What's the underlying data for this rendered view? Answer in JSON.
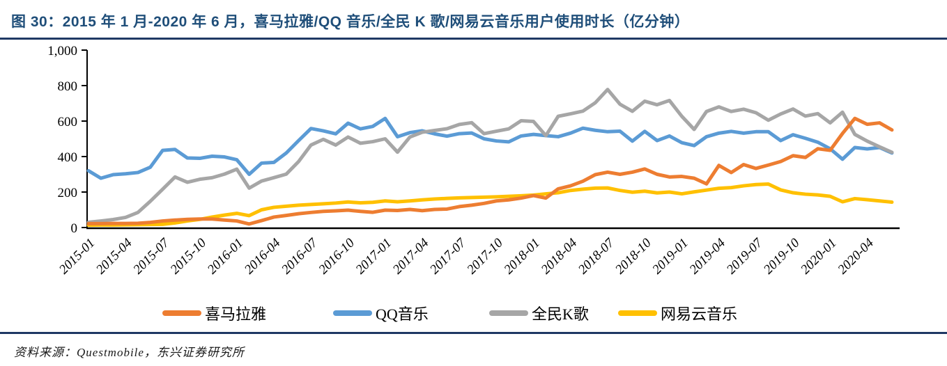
{
  "figure": {
    "title": "图 30：2015 年 1 月-2020 年 6 月，喜马拉雅/QQ 音乐/全民 K 歌/网易云音乐用户使用时长（亿分钟）",
    "source": "资料来源：Questmobile，东兴证券研究所",
    "accent_color": "#1F4E79",
    "rule_color": "#1F3864"
  },
  "chart_data": {
    "type": "line",
    "title": "2015年1月-2020年6月，喜马拉雅/QQ音乐/全民K歌/网易云音乐用户使用时长（亿分钟）",
    "xlabel": "",
    "ylabel": "",
    "ylim": [
      0,
      1000
    ],
    "grid": false,
    "legend_position": "bottom",
    "y_ticks": [
      "0",
      "200",
      "400",
      "600",
      "800",
      "1,000"
    ],
    "x": [
      "2015-01",
      "2015-02",
      "2015-03",
      "2015-04",
      "2015-05",
      "2015-06",
      "2015-07",
      "2015-08",
      "2015-09",
      "2015-10",
      "2015-11",
      "2015-12",
      "2016-01",
      "2016-02",
      "2016-03",
      "2016-04",
      "2016-05",
      "2016-06",
      "2016-07",
      "2016-08",
      "2016-09",
      "2016-10",
      "2016-11",
      "2016-12",
      "2017-01",
      "2017-02",
      "2017-03",
      "2017-04",
      "2017-05",
      "2017-06",
      "2017-07",
      "2017-08",
      "2017-09",
      "2017-10",
      "2017-11",
      "2017-12",
      "2018-01",
      "2018-02",
      "2018-03",
      "2018-04",
      "2018-05",
      "2018-06",
      "2018-07",
      "2018-08",
      "2018-09",
      "2018-10",
      "2018-11",
      "2018-12",
      "2019-01",
      "2019-02",
      "2019-03",
      "2019-04",
      "2019-05",
      "2019-06",
      "2019-07",
      "2019-08",
      "2019-09",
      "2019-10",
      "2019-11",
      "2019-12",
      "2020-01",
      "2020-02",
      "2020-03",
      "2020-04",
      "2020-05",
      "2020-06"
    ],
    "x_tick_labels": [
      "2015-01",
      "2015-04",
      "2015-07",
      "2015-10",
      "2016-01",
      "2016-04",
      "2016-07",
      "2016-10",
      "2017-01",
      "2017-04",
      "2017-07",
      "2017-10",
      "2018-01",
      "2018-04",
      "2018-07",
      "2018-10",
      "2019-01",
      "2019-04",
      "2019-07",
      "2019-10",
      "2020-01",
      "2020-04"
    ],
    "series": [
      {
        "name": "喜马拉雅",
        "color": "#ED7D31",
        "values": [
          22,
          22,
          23,
          23,
          24,
          29,
          37,
          42,
          46,
          48,
          48,
          42,
          37,
          20,
          39,
          59,
          68,
          78,
          85,
          91,
          94,
          98,
          91,
          86,
          98,
          96,
          102,
          95,
          102,
          104,
          118,
          126,
          136,
          150,
          156,
          166,
          180,
          166,
          218,
          235,
          261,
          298,
          312,
          300,
          312,
          330,
          300,
          285,
          288,
          278,
          246,
          350,
          310,
          355,
          333,
          352,
          372,
          405,
          395,
          444,
          435,
          530,
          615,
          582,
          590,
          550
        ]
      },
      {
        "name": "QQ音乐",
        "color": "#5B9BD5",
        "values": [
          320,
          278,
          298,
          303,
          310,
          340,
          435,
          440,
          392,
          390,
          402,
          398,
          382,
          300,
          363,
          367,
          420,
          490,
          558,
          545,
          528,
          588,
          556,
          570,
          615,
          512,
          535,
          545,
          528,
          515,
          529,
          533,
          500,
          488,
          483,
          516,
          525,
          518,
          512,
          532,
          560,
          548,
          540,
          543,
          487,
          542,
          490,
          516,
          478,
          462,
          512,
          532,
          542,
          532,
          540,
          540,
          490,
          523,
          503,
          481,
          444,
          385,
          451,
          443,
          451,
          420
        ]
      },
      {
        "name": "全民K歌",
        "color": "#A6A6A6",
        "values": [
          30,
          37,
          45,
          57,
          85,
          148,
          216,
          285,
          255,
          272,
          281,
          301,
          329,
          222,
          262,
          281,
          301,
          372,
          465,
          497,
          465,
          510,
          475,
          484,
          500,
          425,
          510,
          537,
          547,
          557,
          581,
          591,
          529,
          543,
          556,
          602,
          598,
          518,
          627,
          641,
          656,
          703,
          778,
          695,
          655,
          712,
          692,
          716,
          627,
          553,
          654,
          680,
          654,
          667,
          647,
          605,
          640,
          668,
          628,
          642,
          590,
          650,
          525,
          487,
          455,
          424
        ]
      },
      {
        "name": "网易云音乐",
        "color": "#FFC000",
        "values": [
          13,
          14,
          14,
          15,
          16,
          17,
          18,
          26,
          37,
          46,
          59,
          70,
          80,
          67,
          100,
          114,
          120,
          126,
          130,
          134,
          138,
          144,
          139,
          142,
          150,
          145,
          150,
          156,
          161,
          164,
          167,
          169,
          171,
          173,
          176,
          179,
          183,
          190,
          196,
          209,
          216,
          222,
          223,
          209,
          199,
          205,
          195,
          200,
          190,
          201,
          211,
          221,
          225,
          235,
          242,
          245,
          212,
          196,
          188,
          184,
          176,
          145,
          163,
          157,
          150,
          143
        ]
      }
    ]
  }
}
